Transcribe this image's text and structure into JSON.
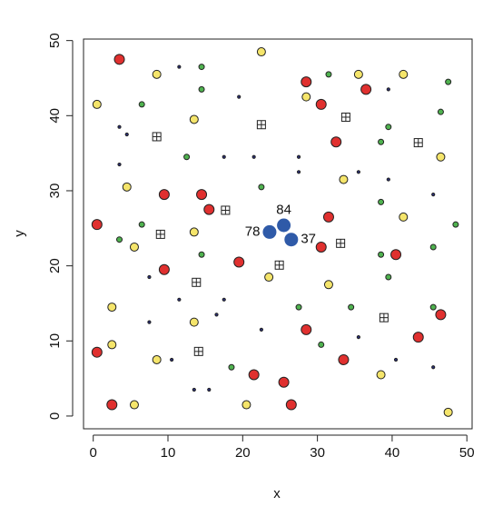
{
  "chart_data": {
    "type": "scatter",
    "x_label": "x",
    "y_label": "y",
    "xlim": [
      -1.3,
      50.7
    ],
    "ylim": [
      -1.7,
      50.2
    ],
    "xticks": [
      0,
      10,
      20,
      30,
      40,
      50
    ],
    "yticks": [
      0,
      10,
      20,
      30,
      40,
      50
    ],
    "series": [
      {
        "color": "#e0302f",
        "marker": "circle",
        "size": 5.5,
        "x": [
          3.5,
          28.5,
          36.5,
          30.5,
          32.5,
          9.5,
          14.5,
          15.5,
          0.5,
          31.5,
          30.5,
          40.5,
          9.5,
          19.5,
          28.5,
          43.5,
          46.5,
          0.5,
          33.5,
          21.5,
          25.5,
          2.5,
          26.5
        ],
        "values": [
          47.5,
          44.5,
          43.5,
          41.5,
          36.5,
          29.5,
          29.5,
          27.5,
          25.5,
          26.5,
          22.5,
          21.5,
          19.5,
          20.5,
          11.5,
          10.5,
          13.5,
          8.5,
          7.5,
          5.5,
          4.5,
          1.5,
          1.5
        ]
      },
      {
        "color": "#f5e56b",
        "marker": "circle",
        "size": 4.5,
        "x": [
          22.5,
          8.5,
          35.5,
          41.5,
          0.5,
          13.5,
          28.5,
          46.5,
          4.5,
          33.5,
          13.5,
          5.5,
          41.5,
          23.5,
          31.5,
          2.5,
          13.5,
          2.5,
          8.5,
          38.5,
          20.5,
          5.5,
          47.5
        ],
        "values": [
          48.5,
          45.5,
          45.5,
          45.5,
          41.5,
          39.5,
          42.5,
          34.5,
          30.5,
          31.5,
          24.5,
          22.5,
          26.5,
          18.5,
          17.5,
          14.5,
          12.5,
          9.5,
          7.5,
          5.5,
          1.5,
          1.5,
          0.5
        ]
      },
      {
        "color": "#4fb24f",
        "marker": "circle",
        "size": 3,
        "x": [
          14.5,
          31.5,
          14.5,
          47.5,
          6.5,
          46.5,
          39.5,
          38.5,
          12.5,
          22.5,
          6.5,
          3.5,
          38.5,
          48.5,
          45.5,
          38.5,
          14.5,
          39.5,
          27.5,
          34.5,
          45.5,
          30.5,
          18.5
        ],
        "values": [
          46.5,
          45.5,
          43.5,
          44.5,
          41.5,
          40.5,
          38.5,
          36.5,
          34.5,
          30.5,
          25.5,
          23.5,
          28.5,
          25.5,
          22.5,
          21.5,
          21.5,
          18.5,
          14.5,
          14.5,
          14.5,
          9.5,
          6.5
        ]
      },
      {
        "color": "#2a2f7a",
        "marker": "circle",
        "size": 1.6,
        "x": [
          11.5,
          19.5,
          39.5,
          3.5,
          4.5,
          3.5,
          17.5,
          21.5,
          27.5,
          27.5,
          35.5,
          39.5,
          45.5,
          7.5,
          11.5,
          17.5,
          16.5,
          7.5,
          22.5,
          35.5,
          10.5,
          40.5,
          45.5,
          13.5,
          15.5
        ],
        "values": [
          46.5,
          42.5,
          43.5,
          38.5,
          37.5,
          33.5,
          34.5,
          34.5,
          34.5,
          32.5,
          32.5,
          31.5,
          29.5,
          18.5,
          15.5,
          15.5,
          13.5,
          12.5,
          11.5,
          10.5,
          7.5,
          7.5,
          6.5,
          3.5,
          3.5
        ]
      },
      {
        "color": "#ffffff",
        "marker": "boxed-cross",
        "size": 4.5,
        "x": [
          8.5,
          22.5,
          33.8,
          43.5,
          17.7,
          9,
          33.1,
          13.8,
          24.9,
          38.9,
          14.1
        ],
        "values": [
          37.2,
          38.8,
          39.8,
          36.4,
          27.4,
          24.2,
          23,
          17.8,
          20.1,
          13.1,
          8.6
        ]
      },
      {
        "color": "#2f5aa8",
        "marker": "circle",
        "size": 7.5,
        "x": [
          23.6,
          25.5,
          26.5
        ],
        "values": [
          24.5,
          25.4,
          23.5
        ],
        "point_labels": [
          "78",
          "84",
          "37"
        ],
        "label_sides": [
          "left",
          "top",
          "right"
        ]
      }
    ]
  }
}
